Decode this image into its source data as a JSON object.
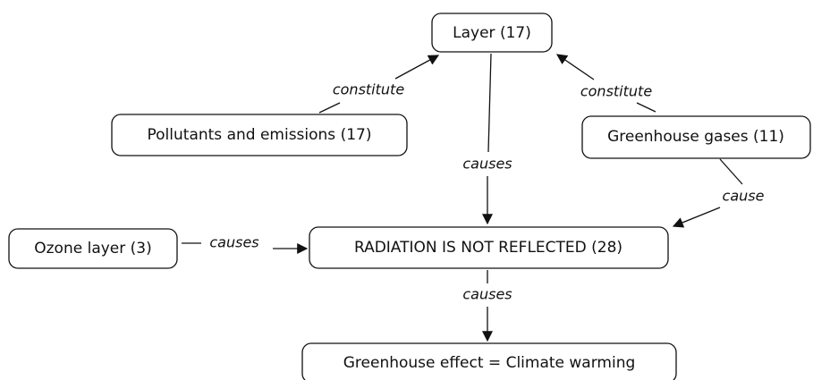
{
  "nodes": [
    {
      "label": "Layer (17)"
    },
    {
      "label": "Pollutants and emissions (17)"
    },
    {
      "label": "Greenhouse gases (11)"
    },
    {
      "label": "Ozone layer (3)"
    },
    {
      "label": "RADIATION IS NOT REFLECTED (28)"
    },
    {
      "label": "Greenhouse effect = Climate warming"
    }
  ],
  "edges": [
    {
      "label": "constitute"
    },
    {
      "label": "constitute"
    },
    {
      "label": "causes"
    },
    {
      "label": "cause"
    },
    {
      "label": "causes"
    },
    {
      "label": "causes"
    }
  ]
}
